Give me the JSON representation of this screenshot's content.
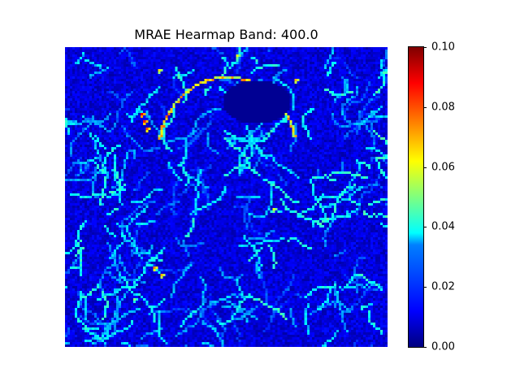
{
  "chart_data": {
    "type": "heatmap",
    "title": "MRAE Hearmap Band: 400.0",
    "colormap": "jet",
    "colorbar": {
      "min": 0.0,
      "max": 0.1,
      "ticks": [
        {
          "value": 0.0,
          "label": "0.00"
        },
        {
          "value": 0.02,
          "label": "0.02"
        },
        {
          "value": 0.04,
          "label": "0.04"
        },
        {
          "value": 0.06,
          "label": "0.06"
        },
        {
          "value": 0.08,
          "label": "0.08"
        },
        {
          "value": 0.1,
          "label": "0.10"
        }
      ]
    },
    "grid": false,
    "axes_visible": false
  }
}
